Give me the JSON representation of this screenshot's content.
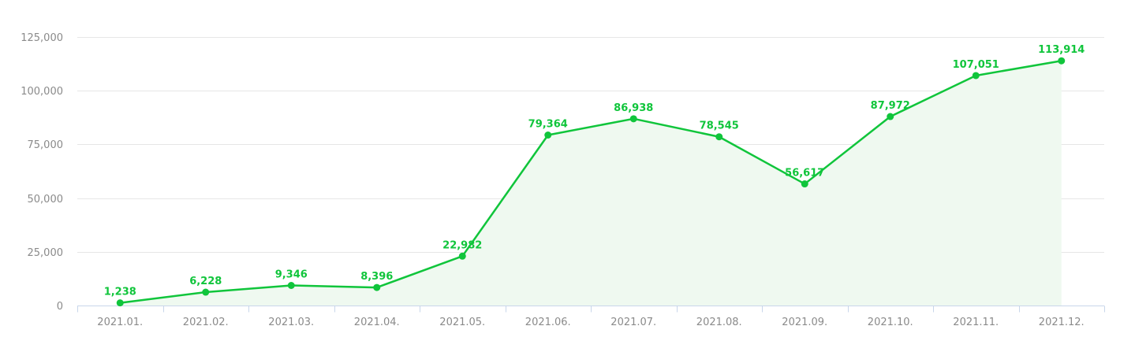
{
  "chart_data": {
    "type": "area",
    "title": "",
    "xlabel": "",
    "ylabel": "",
    "categories": [
      "2021.01.",
      "2021.02.",
      "2021.03.",
      "2021.04.",
      "2021.05.",
      "2021.06.",
      "2021.07.",
      "2021.08.",
      "2021.09.",
      "2021.10.",
      "2021.11.",
      "2021.12."
    ],
    "series": [
      {
        "values": [
          1238,
          6228,
          9346,
          8396,
          22982,
          79364,
          86938,
          78545,
          56617,
          87972,
          107051,
          113914
        ],
        "labels": [
          "1,238",
          "6,228",
          "9,346",
          "8,396",
          "22,982",
          "79,364",
          "86,938",
          "78,545",
          "56,617",
          "87,972",
          "107,051",
          "113,914"
        ],
        "color": "#10c53b",
        "fill": "#eff9f0"
      }
    ],
    "ylim": [
      0,
      125000
    ],
    "yticks": [
      0,
      25000,
      50000,
      75000,
      100000,
      125000
    ],
    "ytick_labels": [
      "0",
      "25,000",
      "50,000",
      "75,000",
      "100,000",
      "125,000"
    ],
    "grid": true,
    "gridColor": "#e6e6e6",
    "axisColor": "#c8d6ea",
    "tickLabelColor": "#8a8a8a"
  }
}
